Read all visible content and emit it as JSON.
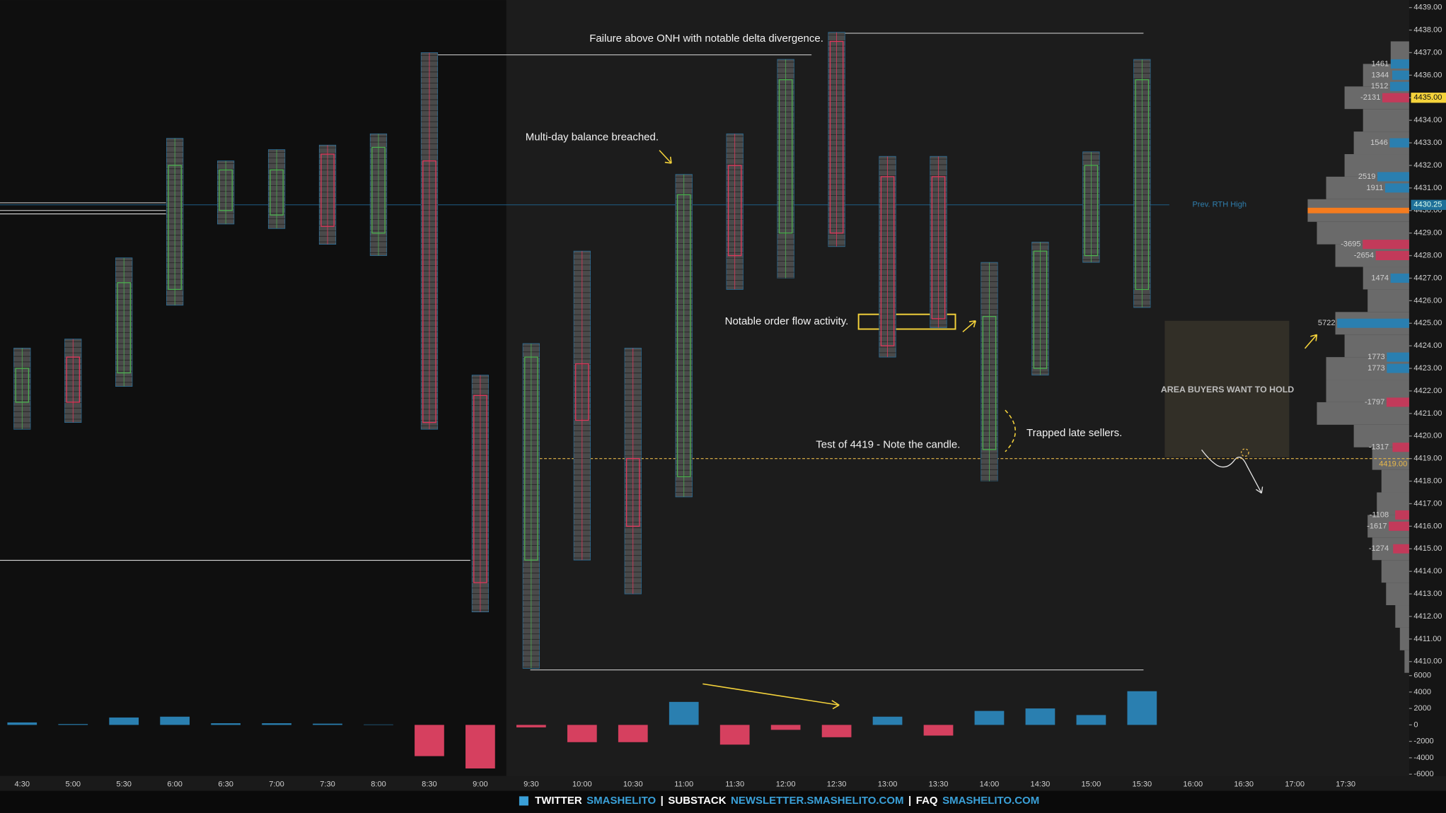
{
  "chart_data": [
    {
      "type": "candlestick",
      "categories": [
        "4:30",
        "5:00",
        "5:30",
        "6:00",
        "6:30",
        "7:00",
        "7:30",
        "8:00",
        "8:30",
        "9:00",
        "9:30",
        "10:00",
        "10:30",
        "11:00",
        "11:30",
        "12:00",
        "12:30",
        "13:00",
        "13:30",
        "14:00",
        "14:30",
        "15:00",
        "15:30",
        "16:00",
        "16:30",
        "17:00",
        "17:30"
      ],
      "open": [
        4421.5,
        4423.5,
        4422.8,
        4426.5,
        4430.0,
        4429.8,
        4432.5,
        4429.0,
        4432.2,
        4421.8,
        4414.5,
        4423.2,
        4419.0,
        4418.2,
        4432.0,
        4429.0,
        4437.5,
        4431.5,
        4431.5,
        4419.4,
        4423.0,
        4428.0,
        4426.5,
        null,
        null,
        null,
        null
      ],
      "high": [
        4423.9,
        4424.3,
        4427.9,
        4433.2,
        4432.2,
        4432.7,
        4432.9,
        4433.4,
        4437.0,
        4422.7,
        4424.1,
        4428.2,
        4423.9,
        4431.6,
        4433.4,
        4436.7,
        4437.9,
        4432.4,
        4432.4,
        4427.7,
        4428.6,
        4432.6,
        4436.7,
        null,
        null,
        null,
        null
      ],
      "low": [
        4420.3,
        4420.6,
        4422.2,
        4425.8,
        4429.4,
        4429.2,
        4428.5,
        4428.0,
        4420.3,
        4412.2,
        4409.7,
        4414.5,
        4413.0,
        4417.3,
        4426.5,
        4427.0,
        4428.4,
        4423.5,
        4424.8,
        4418.0,
        4422.7,
        4427.7,
        4425.7,
        null,
        null,
        null,
        null
      ],
      "close": [
        4423.0,
        4421.5,
        4426.8,
        4432.0,
        4431.8,
        4431.8,
        4429.3,
        4432.8,
        4420.6,
        4413.5,
        4423.5,
        4420.7,
        4416.0,
        4430.7,
        4428.0,
        4435.8,
        4429.0,
        4424.0,
        4425.2,
        4425.3,
        4428.2,
        4432.0,
        4435.8,
        null,
        null,
        null,
        null
      ],
      "up_color": "#4caf50",
      "down_color": "#e0385c",
      "ylim": [
        4409.5,
        4439.33
      ],
      "yticks": [
        {
          "value": 4410,
          "label": "4410.00"
        },
        {
          "value": 4411,
          "label": "4411.00"
        },
        {
          "value": 4412,
          "label": "4412.00"
        },
        {
          "value": 4413,
          "label": "4413.00"
        },
        {
          "value": 4414,
          "label": "4414.00"
        },
        {
          "value": 4415,
          "label": "4415.00"
        },
        {
          "value": 4416,
          "label": "4416.00"
        },
        {
          "value": 4417,
          "label": "4417.00"
        },
        {
          "value": 4418,
          "label": "4418.00"
        },
        {
          "value": 4419,
          "label": "4419.00"
        },
        {
          "value": 4420,
          "label": "4420.00"
        },
        {
          "value": 4421,
          "label": "4421.00"
        },
        {
          "value": 4422,
          "label": "4422.00"
        },
        {
          "value": 4423,
          "label": "4423.00"
        },
        {
          "value": 4424,
          "label": "4424.00"
        },
        {
          "value": 4425,
          "label": "4425.00"
        },
        {
          "value": 4426,
          "label": "4426.00"
        },
        {
          "value": 4427,
          "label": "4427.00"
        },
        {
          "value": 4428,
          "label": "4428.00"
        },
        {
          "value": 4429,
          "label": "4429.00"
        },
        {
          "value": 4430,
          "label": "4430.00"
        },
        {
          "value": 4431,
          "label": "4431.00"
        },
        {
          "value": 4432,
          "label": "4432.00"
        },
        {
          "value": 4433,
          "label": "4433.00"
        },
        {
          "value": 4434,
          "label": "4434.00"
        },
        {
          "value": 4435,
          "label": "4435.00"
        },
        {
          "value": 4436,
          "label": "4436.00"
        },
        {
          "value": 4437,
          "label": "4437.00"
        },
        {
          "value": 4438,
          "label": "4438.00"
        },
        {
          "value": 4439,
          "label": "4439.00"
        }
      ],
      "price_labels": [
        {
          "value": 4435,
          "label": "4435.00",
          "color": "#f5d33b"
        },
        {
          "value": 4430.25,
          "label": "4430.25",
          "color": "#1e6f99"
        }
      ],
      "levels": [
        {
          "value": 4436.9,
          "color": "#d8d8d8"
        },
        {
          "value": 4437.86,
          "color": "#d8d8d8"
        },
        {
          "value": 4409.63,
          "color": "#d8d8d8"
        },
        {
          "value": 4430.34,
          "color": "#d8d8d8"
        },
        {
          "value": 4430.0,
          "color": "#d8d8d8"
        },
        {
          "value": 4429.85,
          "color": "#d8d8d8"
        },
        {
          "value": 4414.49,
          "color": "#d8d8d8"
        },
        {
          "value": 4419,
          "color": "#e8b84a",
          "label": "4419.00",
          "dashed": true
        },
        {
          "value": 4430.25,
          "color": "#1e5f85",
          "label": "Prev. RTH High"
        }
      ],
      "annotations": [
        "Failure above ONH with notable delta divergence.",
        "Multi-day balance breached.",
        "Notable order flow activity.",
        "Test of 4419 - Note the candle.",
        "Trapped late sellers."
      ],
      "box_label": "AREA BUYERS WANT TO HOLD",
      "profile": {
        "prices": [
          4410,
          4411,
          4412,
          4413,
          4414,
          4415,
          4416,
          4417,
          4418,
          4419,
          4420,
          4421,
          4422,
          4423,
          4424,
          4425,
          4426,
          4427,
          4428,
          4429,
          4430,
          4431,
          4432,
          4433,
          4434,
          4435,
          4436,
          4437
        ],
        "volumes": [
          5,
          10,
          15,
          25,
          30,
          40,
          45,
          35,
          30,
          40,
          60,
          100,
          90,
          90,
          70,
          80,
          45,
          50,
          80,
          100,
          110,
          90,
          70,
          60,
          50,
          70,
          50,
          20
        ],
        "color": "#6a6a6a",
        "poc": 4430,
        "poc_color": "#f57c1f",
        "delta_prices": [
          4436.5,
          4436.0,
          4435.5,
          4435.0,
          4433.0,
          4431.5,
          4431.0,
          4428.5,
          4428.0,
          4427.0,
          4425.0,
          4423.5,
          4423.0,
          4421.5,
          4419.5,
          4416.5,
          4416.0,
          4415.0
        ],
        "delta_values": [
          1461,
          1344,
          1512,
          -2131,
          1546,
          2519,
          1911,
          -3695,
          -2654,
          1474,
          5722,
          1773,
          1773,
          -1797,
          -1317,
          -1108,
          -1617,
          -1274
        ],
        "pos_color": "#2a7fb0",
        "neg_color": "#c23a5a"
      }
    },
    {
      "type": "bar",
      "values": [
        300,
        100,
        900,
        1000,
        200,
        200,
        150,
        50,
        -3800,
        -5300,
        -300,
        -2100,
        -2100,
        2800,
        -2400,
        -600,
        -1500,
        1000,
        -1300,
        1700,
        2000,
        1200,
        4100,
        null,
        null,
        null,
        null
      ],
      "pos_color": "#2a7fb0",
      "neg_color": "#d6405f",
      "ylim": [
        -6000,
        6000
      ],
      "yticks": [
        6000,
        4000,
        2000,
        0,
        -2000,
        -4000,
        -6000
      ]
    }
  ],
  "footer": [
    {
      "text": "TWITTER",
      "color": "#ffffff"
    },
    {
      "text": "SMASHELITO",
      "color": "#3aa0d8"
    },
    {
      "text": "|",
      "color": "#ffffff"
    },
    {
      "text": "SUBSTACK",
      "color": "#ffffff"
    },
    {
      "text": "NEWSLETTER.SMASHELITO.COM",
      "color": "#3aa0d8"
    },
    {
      "text": "|",
      "color": "#ffffff"
    },
    {
      "text": "FAQ",
      "color": "#ffffff"
    },
    {
      "text": "SMASHELITO.COM",
      "color": "#3aa0d8"
    }
  ]
}
